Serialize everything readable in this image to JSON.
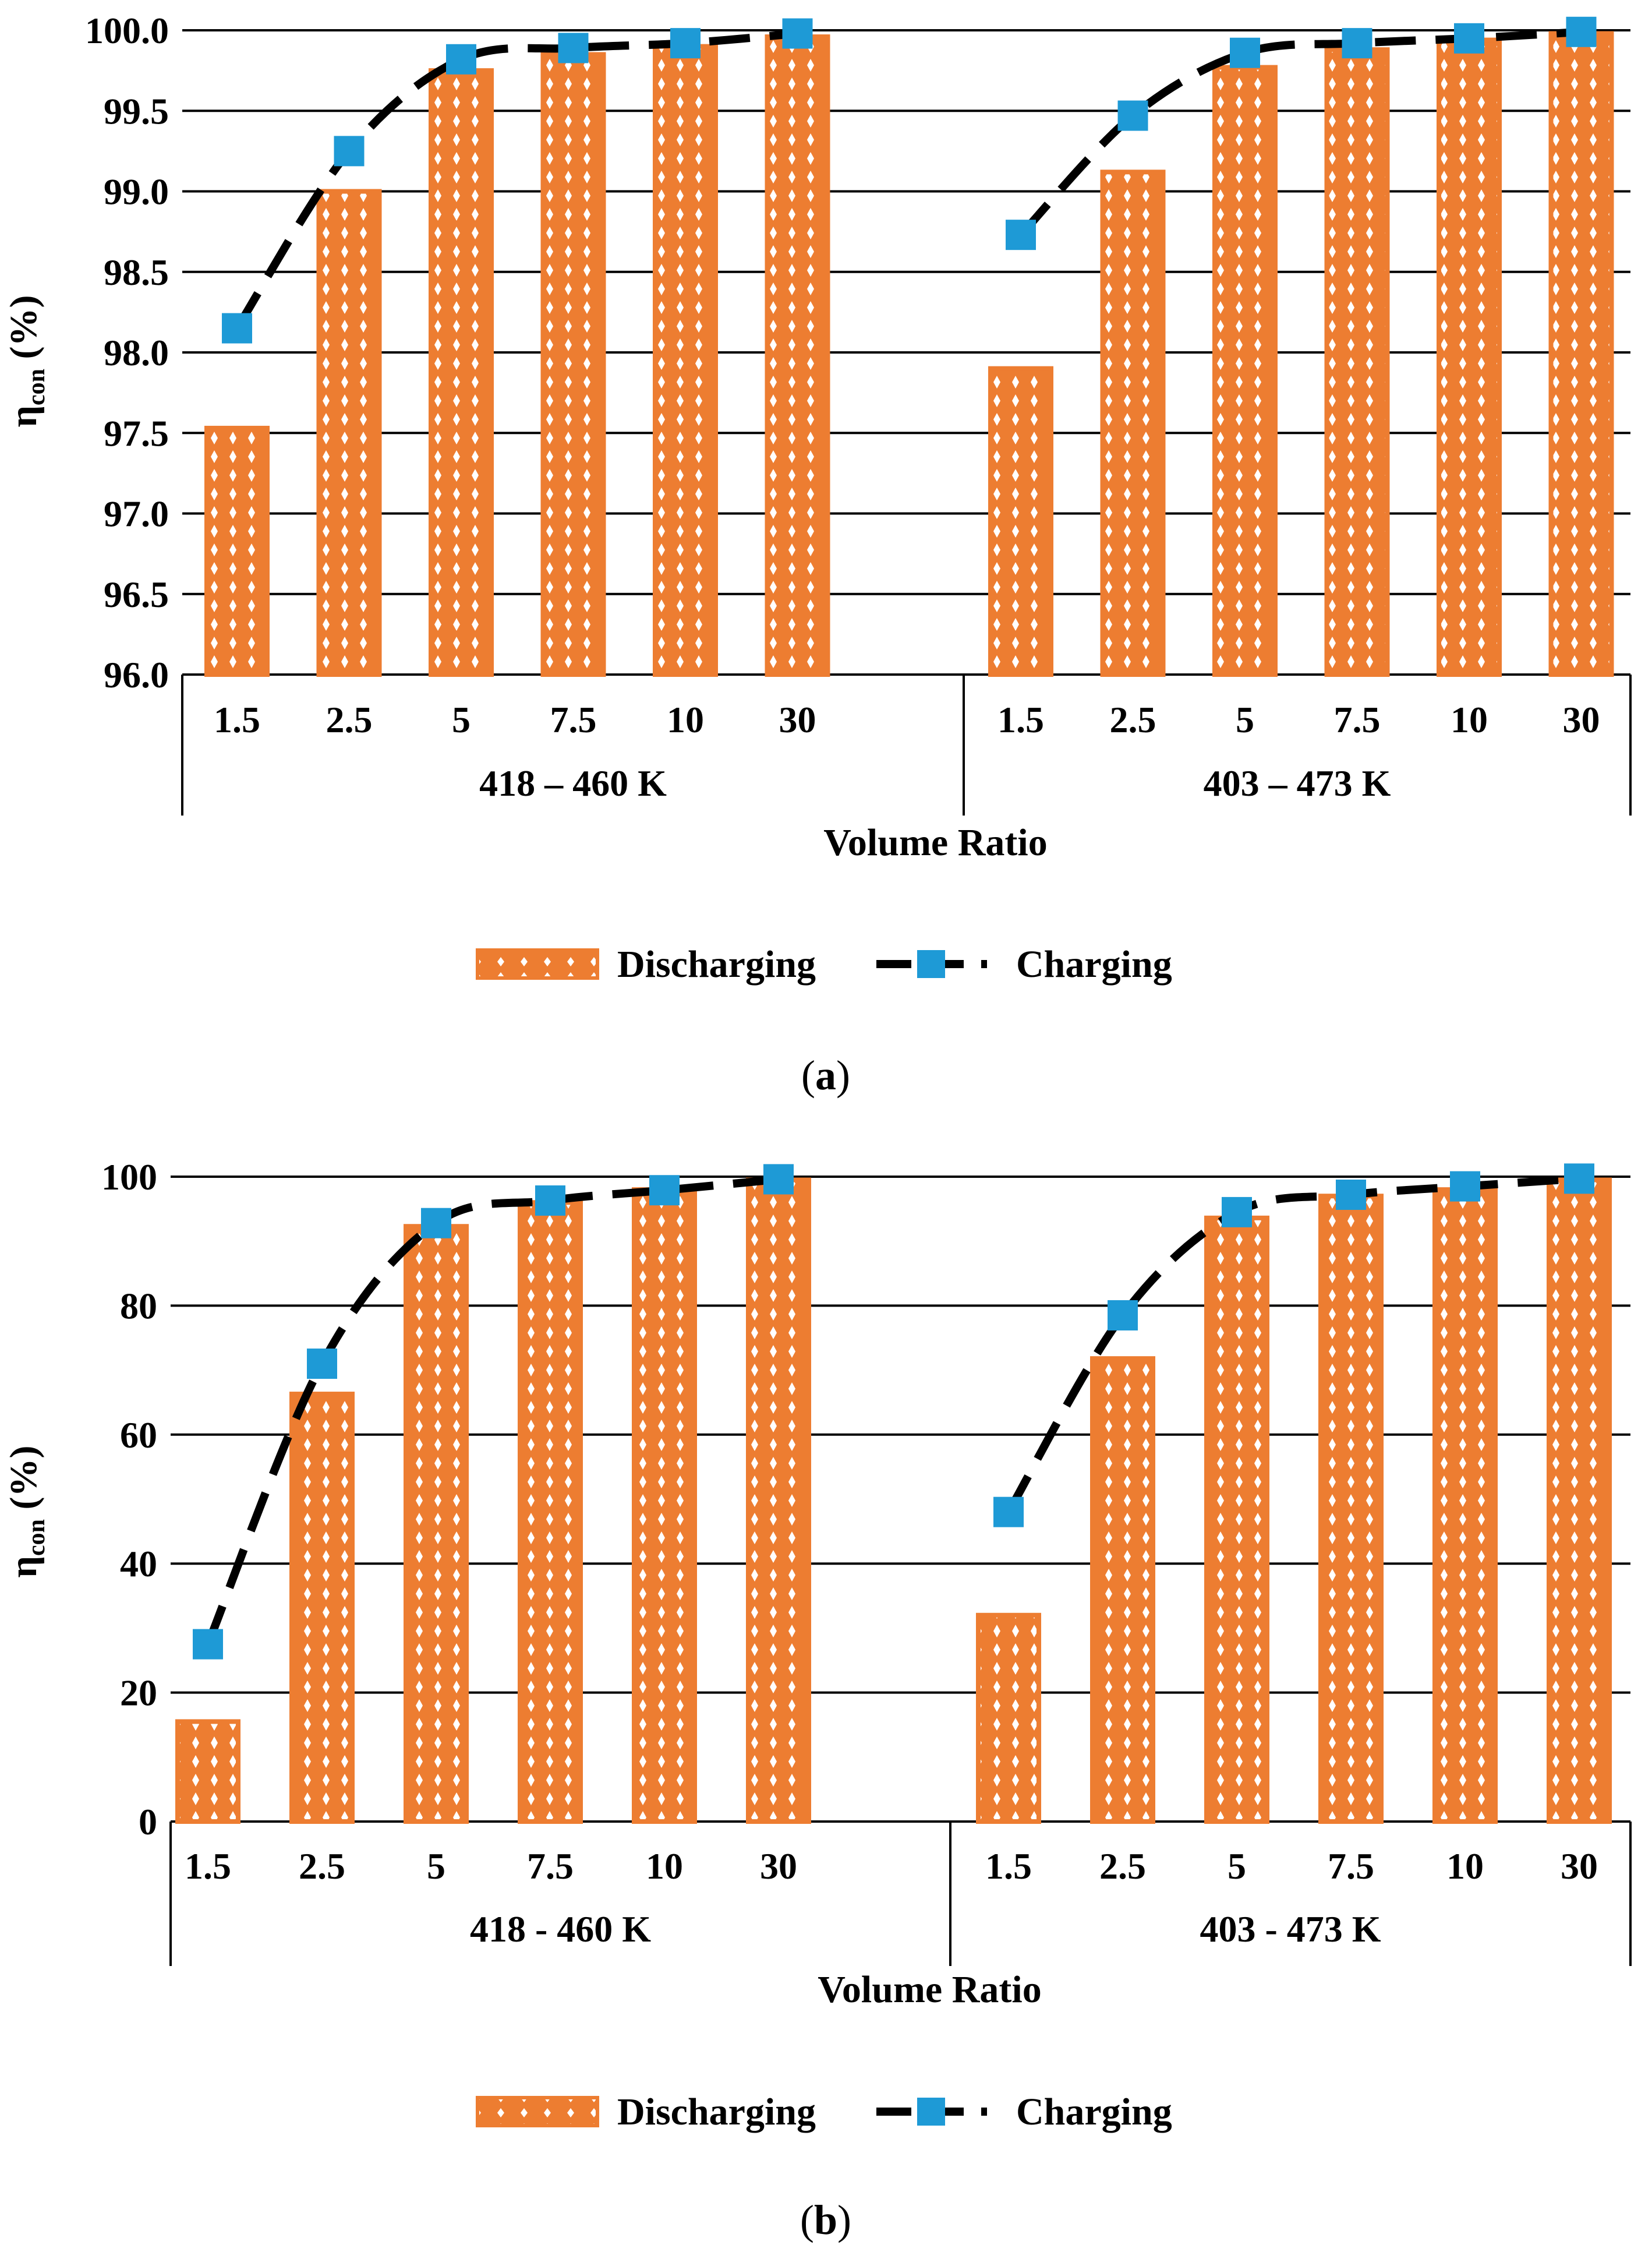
{
  "chart_data": [
    {
      "type": "bar",
      "panel": "a",
      "caption": "a",
      "ylabel_main": "η",
      "ylabel_sub": "con",
      "ylabel_unit": "(%)",
      "xlabel": "Volume Ratio",
      "ylim": [
        96.0,
        100.0
      ],
      "yticks": [
        "96.0",
        "96.5",
        "97.0",
        "97.5",
        "98.0",
        "98.5",
        "99.0",
        "99.5",
        "100.0"
      ],
      "yticks_values": [
        96.0,
        96.5,
        97.0,
        97.5,
        98.0,
        98.5,
        99.0,
        99.5,
        100.0
      ],
      "groups": [
        {
          "label": "418 – 460 K",
          "categories": [
            "1.5",
            "2.5",
            "5",
            "7.5",
            "10",
            "30"
          ],
          "discharging": [
            97.53,
            99.0,
            99.75,
            99.85,
            99.9,
            99.96
          ],
          "charging": [
            98.15,
            99.25,
            99.82,
            99.89,
            99.92,
            99.98
          ]
        },
        {
          "label": "403 – 473 K",
          "categories": [
            "1.5",
            "2.5",
            "5",
            "7.5",
            "10",
            "30"
          ],
          "discharging": [
            97.9,
            99.12,
            99.77,
            99.88,
            99.94,
            99.98
          ],
          "charging": [
            98.73,
            99.47,
            99.86,
            99.92,
            99.95,
            99.99
          ]
        }
      ],
      "legend": {
        "discharging": "Discharging",
        "charging": "Charging"
      }
    },
    {
      "type": "bar",
      "panel": "b",
      "caption": "b",
      "ylabel_main": "η",
      "ylabel_sub": "con",
      "ylabel_unit": "(%)",
      "xlabel": "Volume Ratio",
      "ylim": [
        0,
        100
      ],
      "yticks": [
        "0",
        "20",
        "40",
        "60",
        "80",
        "100"
      ],
      "yticks_values": [
        0,
        20,
        40,
        60,
        80,
        100
      ],
      "groups": [
        {
          "label": "418 - 460 K",
          "categories": [
            "1.5",
            "2.5",
            "5",
            "7.5",
            "10",
            "30"
          ],
          "discharging": [
            15.5,
            66.3,
            92.3,
            96.0,
            98.0,
            99.5
          ],
          "charging": [
            27.5,
            71.0,
            92.8,
            96.3,
            97.9,
            99.6
          ]
        },
        {
          "label": "403 - 473 K",
          "categories": [
            "1.5",
            "2.5",
            "5",
            "7.5",
            "10",
            "30"
          ],
          "discharging": [
            32.0,
            71.8,
            93.6,
            97.0,
            98.0,
            99.5
          ],
          "charging": [
            48.0,
            78.5,
            94.5,
            97.2,
            98.5,
            99.7
          ]
        }
      ],
      "legend": {
        "discharging": "Discharging",
        "charging": "Charging"
      }
    }
  ],
  "colors": {
    "bar_fill": "#ED7D31",
    "bar_edge": "#ED7D31",
    "marker": "#1E9AD6",
    "line": "#000000"
  }
}
